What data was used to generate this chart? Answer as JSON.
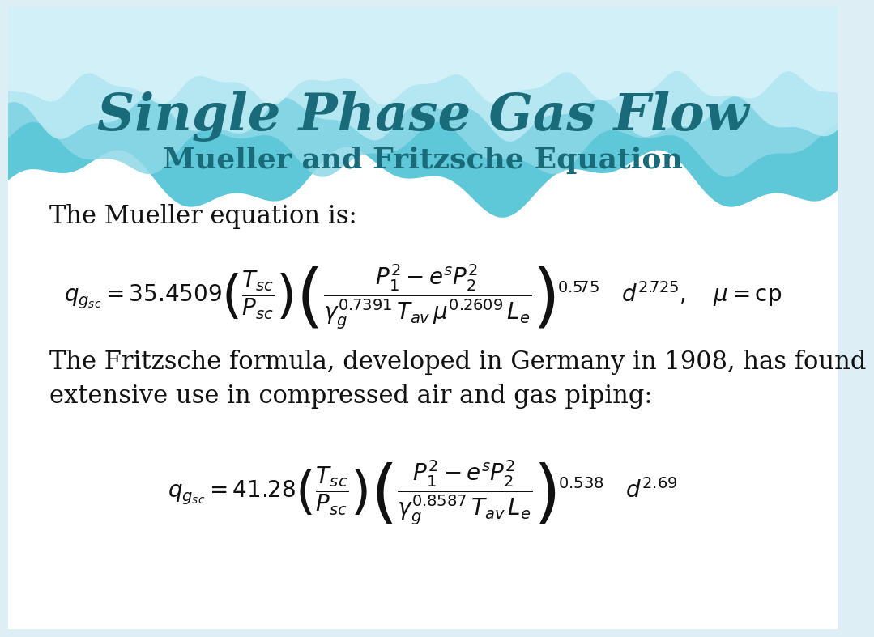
{
  "title": "Single Phase Gas Flow",
  "subtitle": "Mueller and Fritzsche Equation",
  "title_color": "#1a6b7a",
  "subtitle_color": "#1a6b7a",
  "body_text_color": "#111111",
  "mueller_intro": "The Mueller equation is:",
  "fritzsche_intro_1": "The Fritzsche formula, developed in Germany in 1908, has found",
  "fritzsche_intro_2": "extensive use in compressed air and gas piping:",
  "wave_dark": "#5ec8d8",
  "wave_mid": "#8ed8e8",
  "wave_light": "#c0ecf5",
  "wave_lightest": "#ddf4fa",
  "bg_white": "#ffffff",
  "bg_outer": "#ddeef5"
}
